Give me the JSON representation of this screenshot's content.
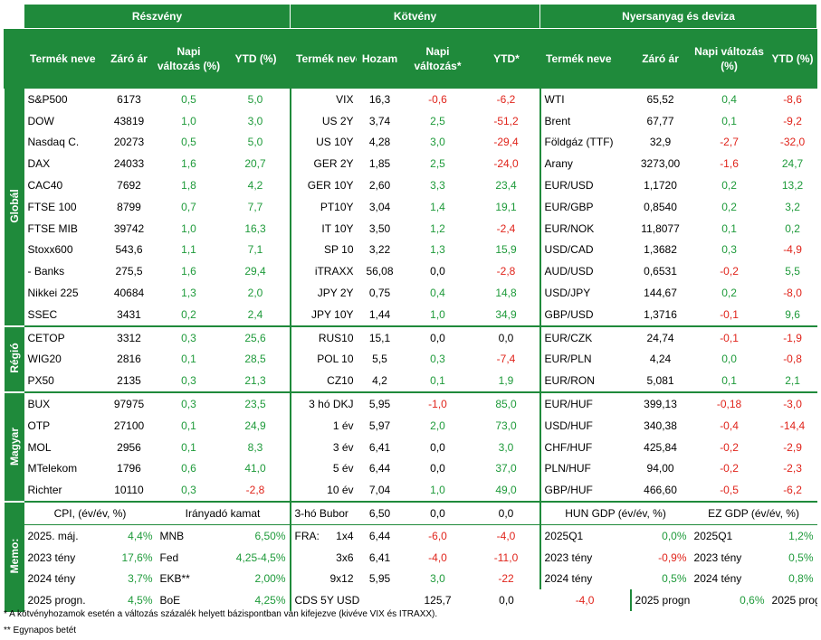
{
  "sections": {
    "equity": "Részvény",
    "bond": "Kötvény",
    "commodity": "Nyersanyag és deviza"
  },
  "headers": {
    "eq": [
      "Termék neve",
      "Záró ár",
      "Napi változás (%)",
      "YTD (%)"
    ],
    "bd": [
      "Termék neve",
      "Hozam",
      "Napi változás*",
      "YTD*"
    ],
    "cm": [
      "Termék neve",
      "Záró ár",
      "Napi változás (%)",
      "YTD (%)"
    ]
  },
  "groups": {
    "global": "Globál",
    "region": "Régió",
    "hungary": "Magyar",
    "memo": "Memo:"
  },
  "rows": [
    {
      "eq": [
        "S&P500",
        "6173",
        "0,5",
        "5,0"
      ],
      "eqc": [
        "g",
        "g"
      ],
      "bd": [
        "VIX",
        "16,3",
        "-0,6",
        "-6,2"
      ],
      "bdc": [
        "rd",
        "rd"
      ],
      "cm": [
        "WTI",
        "65,52",
        "0,4",
        "-8,6"
      ],
      "cmc": [
        "g",
        "rd"
      ]
    },
    {
      "eq": [
        "DOW",
        "43819",
        "1,0",
        "3,0"
      ],
      "eqc": [
        "g",
        "g"
      ],
      "bd": [
        "US 2Y",
        "3,74",
        "2,5",
        "-51,2"
      ],
      "bdc": [
        "g",
        "rd"
      ],
      "cm": [
        "Brent",
        "67,77",
        "0,1",
        "-9,2"
      ],
      "cmc": [
        "g",
        "rd"
      ]
    },
    {
      "eq": [
        "Nasdaq C.",
        "20273",
        "0,5",
        "5,0"
      ],
      "eqc": [
        "g",
        "g"
      ],
      "bd": [
        "US 10Y",
        "4,28",
        "3,0",
        "-29,4"
      ],
      "bdc": [
        "g",
        "rd"
      ],
      "cm": [
        "Földgáz (TTF)",
        "32,9",
        "-2,7",
        "-32,0"
      ],
      "cmc": [
        "rd",
        "rd"
      ]
    },
    {
      "eq": [
        "DAX",
        "24033",
        "1,6",
        "20,7"
      ],
      "eqc": [
        "g",
        "g"
      ],
      "bd": [
        "GER 2Y",
        "1,85",
        "2,5",
        "-24,0"
      ],
      "bdc": [
        "g",
        "rd"
      ],
      "cm": [
        "Arany",
        "3273,00",
        "-1,6",
        "24,7"
      ],
      "cmc": [
        "rd",
        "g"
      ]
    },
    {
      "eq": [
        "CAC40",
        "7692",
        "1,8",
        "4,2"
      ],
      "eqc": [
        "g",
        "g"
      ],
      "bd": [
        "GER 10Y",
        "2,60",
        "3,3",
        "23,4"
      ],
      "bdc": [
        "g",
        "g"
      ],
      "cm": [
        "EUR/USD",
        "1,1720",
        "0,2",
        "13,2"
      ],
      "cmc": [
        "g",
        "g"
      ]
    },
    {
      "eq": [
        "FTSE 100",
        "8799",
        "0,7",
        "7,7"
      ],
      "eqc": [
        "g",
        "g"
      ],
      "bd": [
        "PT10Y",
        "3,04",
        "1,4",
        "19,1"
      ],
      "bdc": [
        "g",
        "g"
      ],
      "cm": [
        "EUR/GBP",
        "0,8540",
        "0,2",
        "3,2"
      ],
      "cmc": [
        "g",
        "g"
      ]
    },
    {
      "eq": [
        "FTSE MIB",
        "39742",
        "1,0",
        "16,3"
      ],
      "eqc": [
        "g",
        "g"
      ],
      "bd": [
        "IT 10Y",
        "3,50",
        "1,2",
        "-2,4"
      ],
      "bdc": [
        "g",
        "rd"
      ],
      "cm": [
        "EUR/NOK",
        "11,8077",
        "0,1",
        "0,2"
      ],
      "cmc": [
        "g",
        "g"
      ]
    },
    {
      "eq": [
        "Stoxx600",
        "543,6",
        "1,1",
        "7,1"
      ],
      "eqc": [
        "g",
        "g"
      ],
      "bd": [
        "SP 10",
        "3,22",
        "1,3",
        "15,9"
      ],
      "bdc": [
        "g",
        "g"
      ],
      "cm": [
        "USD/CAD",
        "1,3682",
        "0,3",
        "-4,9"
      ],
      "cmc": [
        "g",
        "rd"
      ]
    },
    {
      "eq": [
        " - Banks",
        "275,5",
        "1,6",
        "29,4"
      ],
      "eqc": [
        "g",
        "g"
      ],
      "bd": [
        "iTRAXX",
        "56,08",
        "0,0",
        "-2,8"
      ],
      "bdc": [
        "",
        "rd"
      ],
      "cm": [
        "AUD/USD",
        "0,6531",
        "-0,2",
        "5,5"
      ],
      "cmc": [
        "rd",
        "g"
      ]
    },
    {
      "eq": [
        "Nikkei 225",
        "40684",
        "1,3",
        "2,0"
      ],
      "eqc": [
        "g",
        "g"
      ],
      "bd": [
        "JPY 2Y",
        "0,75",
        "0,4",
        "14,8"
      ],
      "bdc": [
        "g",
        "g"
      ],
      "cm": [
        "USD/JPY",
        "144,67",
        "0,2",
        "-8,0"
      ],
      "cmc": [
        "g",
        "rd"
      ]
    },
    {
      "eq": [
        "SSEC",
        "3431",
        "0,2",
        "2,4"
      ],
      "eqc": [
        "g",
        "g"
      ],
      "bd": [
        "JPY 10Y",
        "1,44",
        "1,0",
        "34,9"
      ],
      "bdc": [
        "g",
        "g"
      ],
      "cm": [
        "GBP/USD",
        "1,3716",
        "-0,1",
        "9,6"
      ],
      "cmc": [
        "rd",
        "g"
      ]
    },
    {
      "eq": [
        "CETOP",
        "3312",
        "0,3",
        "25,6"
      ],
      "eqc": [
        "g",
        "g"
      ],
      "bd": [
        "RUS10",
        "15,1",
        "0,0",
        "0,0"
      ],
      "bdc": [
        "",
        ""
      ],
      "cm": [
        "EUR/CZK",
        "24,74",
        "-0,1",
        "-1,9"
      ],
      "cmc": [
        "rd",
        "rd"
      ]
    },
    {
      "eq": [
        "WIG20",
        "2816",
        "0,1",
        "28,5"
      ],
      "eqc": [
        "g",
        "g"
      ],
      "bd": [
        "POL 10",
        "5,5",
        "0,3",
        "-7,4"
      ],
      "bdc": [
        "g",
        "rd"
      ],
      "cm": [
        "EUR/PLN",
        "4,24",
        "0,0",
        "-0,8"
      ],
      "cmc": [
        "g",
        "rd"
      ]
    },
    {
      "eq": [
        "PX50",
        "2135",
        "0,3",
        "21,3"
      ],
      "eqc": [
        "g",
        "g"
      ],
      "bd": [
        "CZ10",
        "4,2",
        "0,1",
        "1,9"
      ],
      "bdc": [
        "g",
        "g"
      ],
      "cm": [
        "EUR/RON",
        "5,081",
        "0,1",
        "2,1"
      ],
      "cmc": [
        "g",
        "g"
      ]
    },
    {
      "eq": [
        "BUX",
        "97975",
        "0,3",
        "23,5"
      ],
      "eqc": [
        "g",
        "g"
      ],
      "bd": [
        "3 hó DKJ",
        "5,95",
        "-1,0",
        "85,0"
      ],
      "bdc": [
        "rd",
        "g"
      ],
      "cm": [
        "EUR/HUF",
        "399,13",
        "-0,18",
        "-3,0"
      ],
      "cmc": [
        "rd",
        "rd"
      ]
    },
    {
      "eq": [
        "OTP",
        "27100",
        "0,1",
        "24,9"
      ],
      "eqc": [
        "g",
        "g"
      ],
      "bd": [
        "1 év",
        "5,97",
        "2,0",
        "73,0"
      ],
      "bdc": [
        "g",
        "g"
      ],
      "cm": [
        "USD/HUF",
        "340,38",
        "-0,4",
        "-14,4"
      ],
      "cmc": [
        "rd",
        "rd"
      ]
    },
    {
      "eq": [
        "MOL",
        "2956",
        "0,1",
        "8,3"
      ],
      "eqc": [
        "g",
        "g"
      ],
      "bd": [
        "3 év",
        "6,41",
        "0,0",
        "3,0"
      ],
      "bdc": [
        "",
        "g"
      ],
      "cm": [
        "CHF/HUF",
        "425,84",
        "-0,2",
        "-2,9"
      ],
      "cmc": [
        "rd",
        "rd"
      ]
    },
    {
      "eq": [
        "MTelekom",
        "1796",
        "0,6",
        "41,0"
      ],
      "eqc": [
        "g",
        "g"
      ],
      "bd": [
        "5 év",
        "6,44",
        "0,0",
        "37,0"
      ],
      "bdc": [
        "",
        "g"
      ],
      "cm": [
        "PLN/HUF",
        "94,00",
        "-0,2",
        "-2,3"
      ],
      "cmc": [
        "rd",
        "rd"
      ]
    },
    {
      "eq": [
        "Richter",
        "10110",
        "0,3",
        "-2,8"
      ],
      "eqc": [
        "g",
        "rd"
      ],
      "bd": [
        "10 év",
        "7,04",
        "1,0",
        "49,0"
      ],
      "bdc": [
        "g",
        "g"
      ],
      "cm": [
        "GBP/HUF",
        "466,60",
        "-0,5",
        "-6,2"
      ],
      "cmc": [
        "rd",
        "rd"
      ]
    }
  ],
  "memo": {
    "headers": {
      "cpi": "CPI, (év/év, %)",
      "rate": "Irányadó kamat",
      "bubor": "3-hó Bubor",
      "bubor_v1": "6,50",
      "bubor_v2": "0,0",
      "bubor_v3": "0,0",
      "hun": "HUN GDP (év/év, %)",
      "ez": "EZ GDP (év/év, %)"
    },
    "rows": [
      {
        "cpi": [
          "2025. máj.",
          "4,4%"
        ],
        "rate": [
          "MNB",
          "6,50%"
        ],
        "bd": [
          "FRA:",
          "1x4",
          "6,44",
          "-6,0",
          "-4,0"
        ],
        "bdc": [
          "rd",
          "rd"
        ],
        "hun": [
          "2025Q1",
          "0,0%"
        ],
        "ez": [
          "2025Q1",
          "1,2%"
        ]
      },
      {
        "cpi": [
          "2023 tény",
          "17,6%"
        ],
        "rate": [
          "Fed",
          "4,25-4,5%"
        ],
        "bd": [
          "",
          "3x6",
          "6,41",
          "-4,0",
          "-11,0"
        ],
        "bdc": [
          "rd",
          "rd"
        ],
        "hun": [
          "2023 tény",
          "-0,9%"
        ],
        "ez": [
          "2023 tény",
          "0,5%"
        ]
      },
      {
        "cpi": [
          "2024 tény",
          "3,7%"
        ],
        "rate": [
          "EKB**",
          "2,00%"
        ],
        "bd": [
          "",
          "9x12",
          "5,95",
          "3,0",
          "-22"
        ],
        "bdc": [
          "g",
          "rd"
        ],
        "hun": [
          "2024 tény",
          "0,5%"
        ],
        "ez": [
          "2024 tény",
          "0,8%"
        ]
      },
      {
        "cpi": [
          "2025 progn.",
          "4,5%"
        ],
        "rate": [
          "BoE",
          "4,25%"
        ],
        "bd": [
          "CDS 5Y USD",
          "",
          "125,7",
          "0,0",
          "-4,0"
        ],
        "bdc": [
          "",
          "rd"
        ],
        "hun": [
          "2025 progn.",
          "0,6%"
        ],
        "ez": [
          "2025 progn.",
          "0,8%"
        ]
      }
    ]
  },
  "footnotes": [
    "* A kötvényhozamok esetén a változás százalék helyett bázispontban van kifejezve (kivéve VIX és ITRAXX).",
    "** Egynapos betét"
  ],
  "colors": {
    "accent": "#1f8a3b",
    "positive": "#1e9a3a",
    "negative": "#e0241b"
  }
}
